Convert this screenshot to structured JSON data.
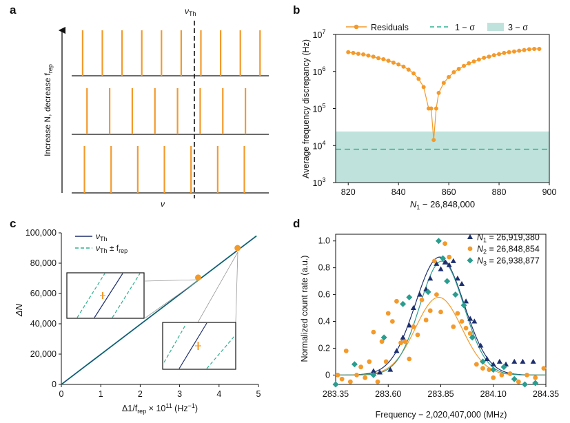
{
  "panel_labels": [
    "a",
    "b",
    "c",
    "d"
  ],
  "colors": {
    "orange": "#f39a2b",
    "navy": "#1d2f6f",
    "teal": "#2a9d8f",
    "teal_fill": "#bfe3dc",
    "dash_green": "#2fb08f"
  },
  "chart_data": [
    {
      "panel": "a",
      "type": "diagram",
      "title": "",
      "marker_label": "ν",
      "marker_sub": "Th",
      "y_arrow_label": "Increase N, decrease f",
      "y_arrow_sub": "rep",
      "xlabel": "ν",
      "rows": [
        {
          "lines": [
            0.3,
            0.84,
            1.38,
            1.92,
            2.46,
            3.0,
            3.54,
            4.08,
            4.62,
            5.16
          ],
          "range": [
            0,
            5.4
          ],
          "highlight_near": 3.0
        },
        {
          "lines": [
            0.42,
            1.04,
            1.66,
            2.28,
            2.9,
            3.52,
            4.14,
            4.76
          ],
          "range": [
            0,
            5.4
          ],
          "highlight_near": 3.0
        },
        {
          "lines": [
            0.35,
            1.08,
            1.81,
            2.54,
            3.27,
            4.0,
            4.73
          ],
          "range": [
            0,
            5.4
          ],
          "highlight_near": 3.0
        }
      ],
      "marker_x": 3.0
    },
    {
      "panel": "b",
      "type": "line",
      "title": "",
      "xlabel": "N",
      "xlabel_sub": "1",
      "xlabel_rest": " − 26,848,000",
      "ylabel": "Average frequency discrepancy (Hz)",
      "xlim": [
        815,
        900
      ],
      "ylim_log10": [
        3,
        7
      ],
      "xticks": [
        "820",
        "840",
        "860",
        "880",
        "900"
      ],
      "xtick_values": [
        820,
        840,
        860,
        880,
        900
      ],
      "ytick_base": "10",
      "ytick_exps": [
        "3",
        "4",
        "5",
        "6",
        "7"
      ],
      "legend": {
        "residuals": "Residuals",
        "one_sigma": "1 − σ",
        "three_sigma": "3 − σ"
      },
      "one_sigma_log10": 3.9,
      "three_sigma_log10": 4.38,
      "x": [
        820,
        822,
        824,
        826,
        828,
        830,
        832,
        834,
        836,
        838,
        840,
        842,
        844,
        846,
        848,
        850,
        852,
        853,
        854,
        855,
        856,
        858,
        860,
        862,
        864,
        866,
        868,
        870,
        872,
        874,
        876,
        878,
        880,
        882,
        884,
        886,
        888,
        890,
        892,
        894,
        896
      ],
      "y_log10": [
        6.52,
        6.5,
        6.48,
        6.46,
        6.43,
        6.4,
        6.36,
        6.33,
        6.29,
        6.24,
        6.19,
        6.13,
        6.05,
        5.95,
        5.8,
        5.58,
        5.0,
        5.0,
        4.15,
        5.0,
        5.42,
        5.69,
        5.85,
        5.98,
        6.07,
        6.15,
        6.22,
        6.27,
        6.32,
        6.37,
        6.4,
        6.44,
        6.47,
        6.5,
        6.52,
        6.54,
        6.56,
        6.58,
        6.6,
        6.61,
        6.61
      ]
    },
    {
      "panel": "c",
      "type": "line",
      "title": "",
      "xlabel": "Δ1/f",
      "xlabel_sub": "rep",
      "xlabel_rest": " × 10",
      "xlabel_sup": "11",
      "xlabel_unit": " (Hz",
      "xlabel_unit_sup": "−1",
      "xlabel_unit_end": ")",
      "ylabel": "ΔN",
      "xlim": [
        0,
        5
      ],
      "ylim": [
        0,
        100000
      ],
      "xticks": [
        "0",
        "1",
        "2",
        "3",
        "4",
        "5"
      ],
      "xtick_values": [
        0,
        1,
        2,
        3,
        4,
        5
      ],
      "yticks": [
        "0",
        "20,000",
        "40,000",
        "60,000",
        "80,000",
        "100,000"
      ],
      "ytick_values": [
        0,
        20000,
        40000,
        60000,
        80000,
        100000
      ],
      "legend": {
        "line1": "ν",
        "line1_sub": "Th",
        "line2": "ν",
        "line2_sub": "Th",
        "line2_rest": " ± f",
        "line2_sub2": "rep"
      },
      "series": [
        {
          "name": "νTh",
          "x": [
            0,
            4.95
          ],
          "y": [
            0,
            98000
          ]
        }
      ],
      "points": [
        {
          "x": 3.47,
          "y": 70500
        },
        {
          "x": 4.47,
          "y": 90000
        }
      ]
    },
    {
      "panel": "d",
      "type": "scatter",
      "title": "",
      "xlabel": "Frequency − 2,020,407,000 (MHz)",
      "ylabel": "Normalized count rate (a.u.)",
      "xlim": [
        283.35,
        284.35
      ],
      "ylim": [
        -0.07,
        1.05
      ],
      "xticks": [
        "283.35",
        "283.60",
        "283.85",
        "284.10",
        "284.35"
      ],
      "xtick_values": [
        283.35,
        283.6,
        283.85,
        284.1,
        284.35
      ],
      "yticks": [
        "0",
        "0.2",
        "0.4",
        "0.6",
        "0.8",
        "1.0"
      ],
      "ytick_values": [
        0,
        0.2,
        0.4,
        0.6,
        0.8,
        1.0
      ],
      "legend": [
        {
          "name": "N",
          "sub": "1",
          "rest": " = 26,919,380",
          "marker": "triangle",
          "color": "#1d2f6f"
        },
        {
          "name": "N",
          "sub": "2",
          "rest": " = 26,848,854",
          "marker": "circle",
          "color": "#f39a2b"
        },
        {
          "name": "N",
          "sub": "3",
          "rest": " = 26,938,877",
          "marker": "diamond",
          "color": "#2a9d8f"
        }
      ],
      "fits": [
        {
          "name": "N1",
          "amp": 0.88,
          "center": 283.845,
          "sigma": 0.115,
          "color": "#1d2f6f"
        },
        {
          "name": "N2",
          "amp": 0.58,
          "center": 283.84,
          "sigma": 0.11,
          "color": "#f39a2b"
        },
        {
          "name": "N3",
          "amp": 0.85,
          "center": 283.855,
          "sigma": 0.105,
          "color": "#2a9d8f"
        }
      ],
      "series": [
        {
          "name": "N1",
          "marker": "triangle",
          "color": "#1d2f6f",
          "x": [
            283.53,
            283.56,
            283.61,
            283.64,
            283.67,
            283.7,
            283.72,
            283.75,
            283.78,
            283.8,
            283.83,
            283.85,
            283.87,
            283.89,
            283.91,
            283.93,
            283.95,
            283.97,
            283.99,
            284.01,
            284.04,
            284.07,
            284.1,
            284.13,
            284.16,
            284.2,
            284.24,
            284.29
          ],
          "y": [
            0.03,
            0.02,
            0.04,
            0.18,
            0.28,
            0.37,
            0.5,
            0.6,
            0.64,
            0.72,
            0.83,
            0.79,
            0.84,
            0.82,
            0.85,
            0.72,
            0.68,
            0.55,
            0.42,
            0.4,
            0.22,
            0.12,
            0.08,
            0.1,
            0.08,
            0.1,
            0.1,
            0.1
          ]
        },
        {
          "name": "N2",
          "marker": "circle",
          "color": "#f39a2b",
          "x": [
            283.36,
            283.38,
            283.4,
            283.42,
            283.45,
            283.47,
            283.49,
            283.51,
            283.53,
            283.55,
            283.57,
            283.59,
            283.6,
            283.62,
            283.64,
            283.66,
            283.68,
            283.7,
            283.72,
            283.74,
            283.76,
            283.78,
            283.8,
            283.82,
            283.83,
            283.85,
            283.87,
            283.89,
            283.91,
            283.93,
            283.95,
            283.97,
            283.99,
            284.02,
            284.05,
            284.08,
            284.1,
            284.14,
            284.18,
            284.22,
            284.26,
            284.3,
            284.34
          ],
          "y": [
            0.0,
            -0.03,
            0.18,
            -0.05,
            0.0,
            0.06,
            -0.02,
            0.1,
            0.32,
            -0.05,
            0.25,
            0.1,
            0.46,
            0.4,
            0.55,
            0.24,
            0.25,
            0.12,
            0.36,
            0.3,
            0.56,
            0.41,
            0.48,
            0.85,
            0.6,
            0.47,
            0.98,
            0.88,
            0.36,
            0.46,
            0.4,
            0.35,
            0.31,
            0.08,
            0.05,
            0.04,
            -0.02,
            0.0,
            0.01,
            -0.05,
            0.0,
            -0.02,
            0.05
          ]
        },
        {
          "name": "N3",
          "marker": "diamond",
          "color": "#2a9d8f",
          "x": [
            283.35,
            283.44,
            283.53,
            283.58,
            283.67,
            283.7,
            283.79,
            283.84,
            283.86,
            283.88,
            283.92,
            283.96,
            284.0,
            284.05,
            284.1,
            284.15,
            284.2,
            284.25,
            284.3
          ],
          "y": [
            -0.07,
            0.08,
            0.0,
            0.28,
            0.53,
            0.58,
            0.62,
            1.0,
            0.87,
            0.7,
            0.6,
            0.52,
            0.28,
            0.1,
            0.04,
            0.06,
            -0.03,
            -0.07,
            -0.06
          ]
        }
      ]
    }
  ]
}
